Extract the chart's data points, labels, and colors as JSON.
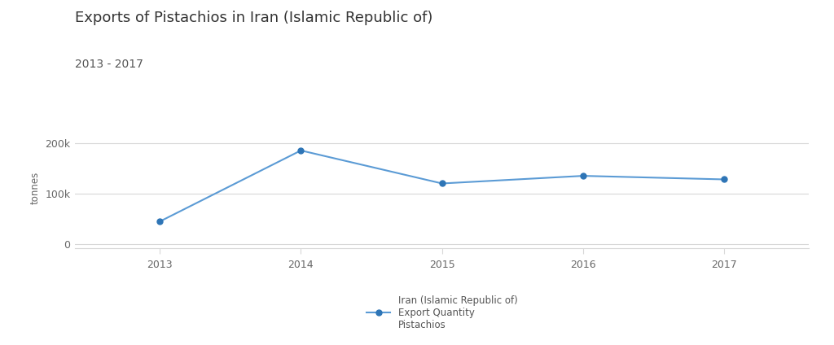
{
  "title": "Exports of Pistachios in Iran (Islamic Republic of)",
  "subtitle": "2013 - 2017",
  "years": [
    2013,
    2014,
    2015,
    2016,
    2017
  ],
  "values": [
    45000,
    185000,
    120000,
    135000,
    128000
  ],
  "line_color": "#5b9bd5",
  "marker_color": "#2e75b6",
  "ylabel": "tonnes",
  "yticks": [
    0,
    100000,
    200000
  ],
  "ytick_labels": [
    "0",
    "100k",
    "200k"
  ],
  "ylim": [
    -8000,
    230000
  ],
  "xlim": [
    2012.4,
    2017.6
  ],
  "background_color": "#ffffff",
  "grid_color": "#d8d8d8",
  "title_fontsize": 13,
  "subtitle_fontsize": 10,
  "axis_label_fontsize": 8.5,
  "tick_fontsize": 9,
  "legend_label_line1": "Iran (Islamic Republic of)",
  "legend_label_line2": "Export Quantity",
  "legend_label_line3": "Pistachios"
}
